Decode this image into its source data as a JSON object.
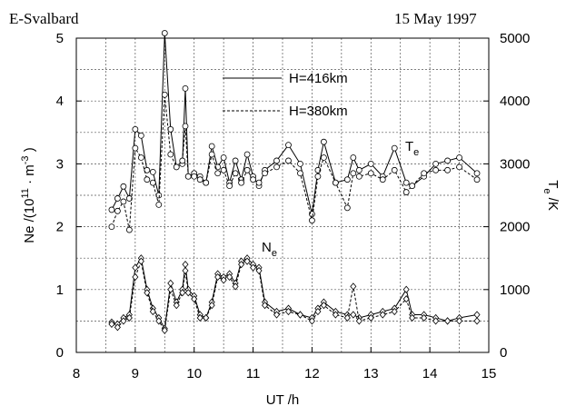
{
  "chart_data": {
    "type": "line",
    "title_left": "E-Svalbard",
    "title_right": "15 May 1997",
    "xlabel": "UT /h",
    "ylabel": {
      "text": "Ne /(10",
      "sup1": "11",
      "mid": " · m",
      "sup2": "-3",
      "end": " )"
    },
    "y2label": {
      "main": "T",
      "sub": "e",
      "end": " /K"
    },
    "te_label": {
      "main": "T",
      "sub": "e"
    },
    "ne_label": {
      "main": "N",
      "sub": "e"
    },
    "xlim": [
      8,
      15
    ],
    "xticks": [
      8,
      9,
      10,
      11,
      12,
      13,
      14,
      15
    ],
    "ylim": [
      0,
      5
    ],
    "yticks": [
      0,
      1,
      2,
      3,
      4,
      5
    ],
    "y2lim": [
      0,
      5000
    ],
    "y2ticks": [
      0,
      1000,
      2000,
      3000,
      4000,
      5000
    ],
    "xgrid": [
      8.5,
      9,
      9.5,
      10,
      10.5,
      11,
      11.5,
      12,
      12.5,
      13,
      13.5,
      14,
      14.5
    ],
    "ygrid": [
      0.5,
      1,
      1.5,
      2,
      2.5,
      3,
      3.5,
      4,
      4.5
    ],
    "grid": true,
    "color": "#000000",
    "te_marker": "circle",
    "ne_marker": "diamond",
    "x": [
      8.6,
      8.7,
      8.8,
      8.9,
      9.0,
      9.1,
      9.2,
      9.3,
      9.4,
      9.5,
      9.6,
      9.7,
      9.8,
      9.85,
      9.9,
      10.0,
      10.1,
      10.2,
      10.3,
      10.4,
      10.5,
      10.6,
      10.7,
      10.8,
      10.9,
      11.0,
      11.1,
      11.2,
      11.4,
      11.6,
      11.8,
      12.0,
      12.1,
      12.2,
      12.4,
      12.6,
      12.7,
      12.8,
      13.0,
      13.2,
      13.4,
      13.6,
      13.7,
      13.9,
      14.1,
      14.3,
      14.5,
      14.8
    ],
    "series": [
      {
        "name": "H=416km",
        "dash": "solid",
        "te": [
          2270,
          2450,
          2640,
          2450,
          3550,
          3450,
          2900,
          2870,
          2500,
          5080,
          3550,
          2950,
          3000,
          4200,
          2800,
          2850,
          2800,
          2700,
          3280,
          2950,
          3100,
          2700,
          3050,
          2750,
          3150,
          2800,
          2650,
          2900,
          3050,
          3300,
          3000,
          2200,
          2900,
          3350,
          2700,
          2750,
          3100,
          2900,
          3000,
          2800,
          3250,
          2700,
          2650,
          2800,
          3000,
          3050,
          3100,
          2850
        ],
        "ne": [
          0.48,
          0.45,
          0.55,
          0.6,
          1.35,
          1.5,
          1.0,
          0.7,
          0.55,
          0.38,
          1.1,
          0.8,
          1.0,
          1.4,
          1.0,
          0.9,
          0.6,
          0.55,
          0.8,
          1.25,
          1.2,
          1.25,
          1.1,
          1.45,
          1.5,
          1.4,
          1.35,
          0.8,
          0.65,
          0.7,
          0.6,
          0.55,
          0.7,
          0.8,
          0.65,
          0.6,
          0.6,
          0.55,
          0.6,
          0.65,
          0.7,
          1.0,
          0.6,
          0.6,
          0.55,
          0.5,
          0.55,
          0.6
        ]
      },
      {
        "name": "H=380km",
        "dash": "dashed",
        "te": [
          2000,
          2250,
          2400,
          1950,
          3250,
          3100,
          2750,
          2700,
          2350,
          4100,
          3150,
          2950,
          3050,
          3600,
          2800,
          2800,
          2750,
          2700,
          3150,
          2850,
          2900,
          2650,
          2850,
          2700,
          2900,
          2750,
          2700,
          2850,
          2950,
          3050,
          2850,
          2100,
          2800,
          3100,
          2700,
          2300,
          2850,
          2800,
          2850,
          2750,
          2900,
          2550,
          2650,
          2850,
          2900,
          2900,
          2950,
          2750
        ],
        "ne": [
          0.45,
          0.4,
          0.5,
          0.55,
          1.2,
          1.45,
          0.95,
          0.65,
          0.5,
          0.35,
          1.0,
          0.75,
          0.95,
          1.3,
          0.95,
          0.85,
          0.55,
          0.55,
          0.75,
          1.2,
          1.15,
          1.2,
          1.05,
          1.4,
          1.45,
          1.35,
          1.3,
          0.75,
          0.6,
          0.65,
          0.6,
          0.5,
          0.65,
          0.75,
          0.6,
          0.55,
          1.05,
          0.5,
          0.55,
          0.6,
          0.65,
          0.85,
          0.55,
          0.55,
          0.5,
          0.5,
          0.5,
          0.5
        ]
      }
    ]
  }
}
